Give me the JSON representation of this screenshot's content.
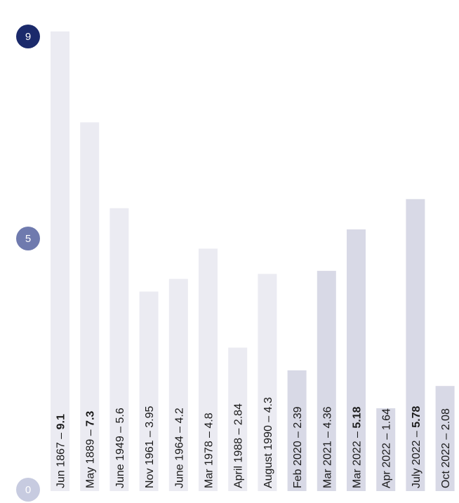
{
  "chart_data": {
    "type": "bar",
    "title": "",
    "xlabel": "",
    "ylabel": "",
    "ylim": [
      0,
      9.5
    ],
    "categories": [
      "Jun 1867",
      "May 1889",
      "June 1949",
      "Nov 1961",
      "June 1964",
      "Mar 1978",
      "April 1988",
      "August 1990",
      "Feb 2020",
      "Mar 2021",
      "Mar 2022",
      "Apr 2022",
      "July 2022",
      "Oct 2022"
    ],
    "values": [
      9.1,
      7.3,
      5.6,
      3.95,
      4.2,
      4.8,
      2.84,
      4.3,
      2.39,
      4.36,
      5.18,
      1.64,
      5.78,
      2.08
    ],
    "value_labels": [
      "9.1",
      "7.3",
      "5.6",
      "3.95",
      "4.2",
      "4.8",
      "2.84",
      "4.3",
      "2.39",
      "4.36",
      "5.18",
      "1.64",
      "5.78",
      "2.08"
    ],
    "bold_values": [
      true,
      true,
      false,
      false,
      false,
      false,
      false,
      false,
      false,
      false,
      true,
      false,
      true,
      false
    ],
    "separator": " – ",
    "y_ticks": [
      {
        "value": 9,
        "label": "9",
        "color": "#1b2a6b"
      },
      {
        "value": 5,
        "label": "5",
        "color": "#6f7aae"
      },
      {
        "value": 0,
        "label": "0",
        "color": "#c7cbe0"
      }
    ],
    "grid": false,
    "legend": "none",
    "colors": {
      "bar_historic": "#ebebf2",
      "bar_recent": "#d8d9e6",
      "label_text": "#1a1a1a"
    },
    "recent_from_index": 8
  }
}
